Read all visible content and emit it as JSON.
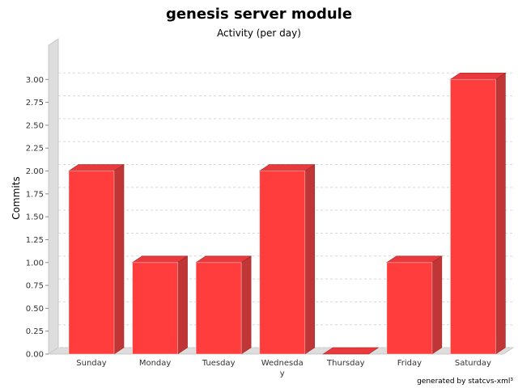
{
  "chart_data": {
    "type": "bar",
    "title": "genesis server module",
    "subtitle": "Activity (per day)",
    "xlabel": "",
    "ylabel": "Commits",
    "categories": [
      "Sunday",
      "Monday",
      "Tuesday",
      "Wednesday",
      "Thursday",
      "Friday",
      "Saturday"
    ],
    "category_display": [
      [
        "Sunday"
      ],
      [
        "Monday"
      ],
      [
        "Tuesday"
      ],
      [
        "Wednesda",
        "y"
      ],
      [
        "Thursday"
      ],
      [
        "Friday"
      ],
      [
        "Saturday"
      ]
    ],
    "values": [
      2,
      1,
      1,
      2,
      0,
      1,
      3
    ],
    "ylim": [
      0,
      3.25
    ],
    "yticks": [
      "0.00",
      "0.25",
      "0.50",
      "0.75",
      "1.00",
      "1.25",
      "1.50",
      "1.75",
      "2.00",
      "2.25",
      "2.50",
      "2.75",
      "3.00"
    ],
    "grid": true,
    "bar_style": "3d",
    "colors": {
      "bar_front": "#ff3d3d",
      "bar_top": "#e8393d",
      "bar_side": "#c03535",
      "grid": "#d8d8d8",
      "wall": "#dddddd"
    }
  },
  "footer": {
    "text": "generated by statcvs-xml³"
  }
}
